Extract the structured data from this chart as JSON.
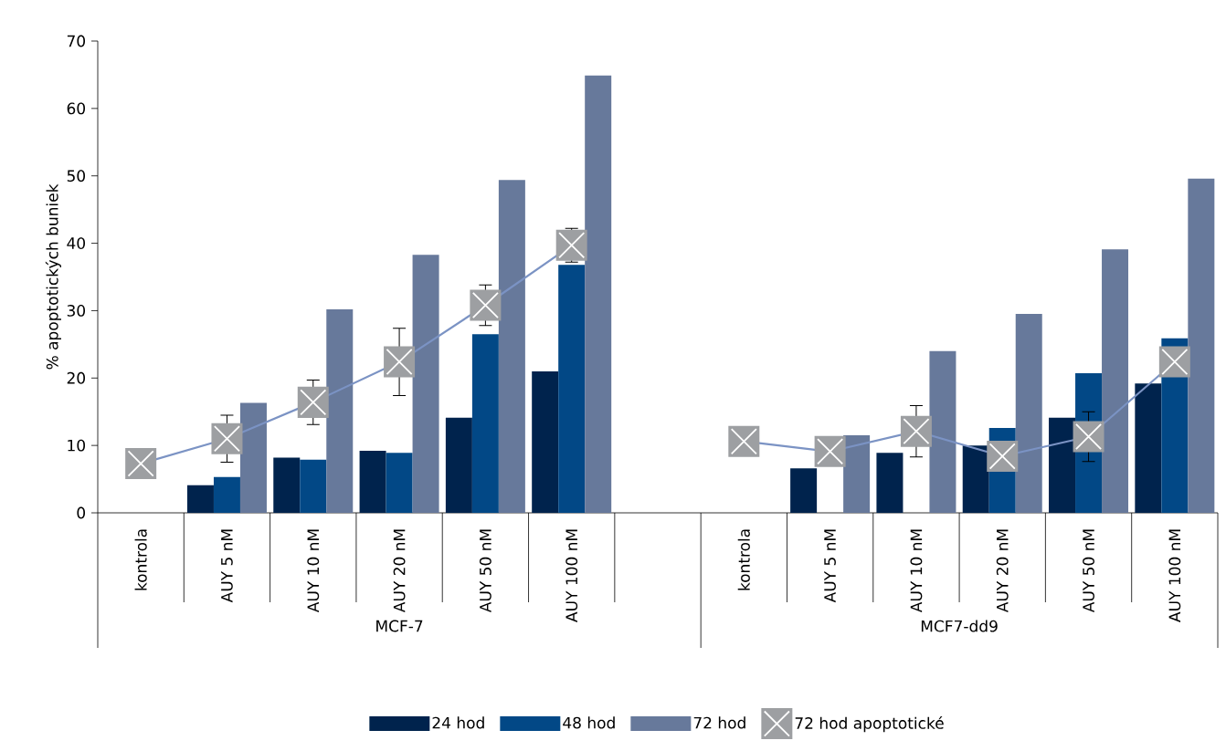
{
  "chart_data": {
    "type": "bar",
    "ylabel": "% apoptotických buniek",
    "categories": [
      "kontrola",
      "AUY 5 nM",
      "AUY 10 nM",
      "AUY 20 nM",
      "AUY 50 nM",
      "AUY 100 nM",
      null,
      "kontrola",
      "AUY 5 nM",
      "AUY 10 nM",
      "AUY 20 nM",
      "AUY 50 nM",
      "AUY 100 nM"
    ],
    "series": [
      {
        "name": "24 hod",
        "color": "#00234d",
        "values": [
          null,
          4.1,
          8.2,
          9.2,
          14.1,
          21.0,
          null,
          null,
          6.6,
          8.9,
          10.0,
          14.1,
          19.2
        ]
      },
      {
        "name": "48 hod",
        "color": "#024886",
        "values": [
          null,
          5.3,
          7.9,
          8.9,
          26.5,
          36.8,
          null,
          null,
          null,
          null,
          12.6,
          20.7,
          25.9
        ]
      },
      {
        "name": "72 hod",
        "color": "#67799b",
        "values": [
          null,
          16.3,
          30.2,
          38.3,
          49.4,
          64.9,
          null,
          null,
          11.5,
          24.0,
          29.5,
          39.1,
          49.6
        ]
      },
      {
        "name": "72 hod apoptotické",
        "type": "line",
        "marker": "square",
        "color": "#7b93c4",
        "values": [
          7.3,
          11.0,
          16.4,
          22.4,
          30.8,
          39.7,
          null,
          10.6,
          9.1,
          12.1,
          8.4,
          11.3,
          22.4
        ],
        "errors": [
          null,
          3.5,
          3.3,
          5.0,
          3.0,
          2.5,
          null,
          null,
          null,
          3.8,
          null,
          3.7,
          null
        ]
      }
    ],
    "annotations": [
      "MCF-7",
      "MCF7-dd9"
    ],
    "ylim": [
      0,
      70
    ],
    "yticks": [
      0,
      10,
      20,
      30,
      40,
      50,
      60,
      70
    ],
    "legend": "bottom"
  }
}
